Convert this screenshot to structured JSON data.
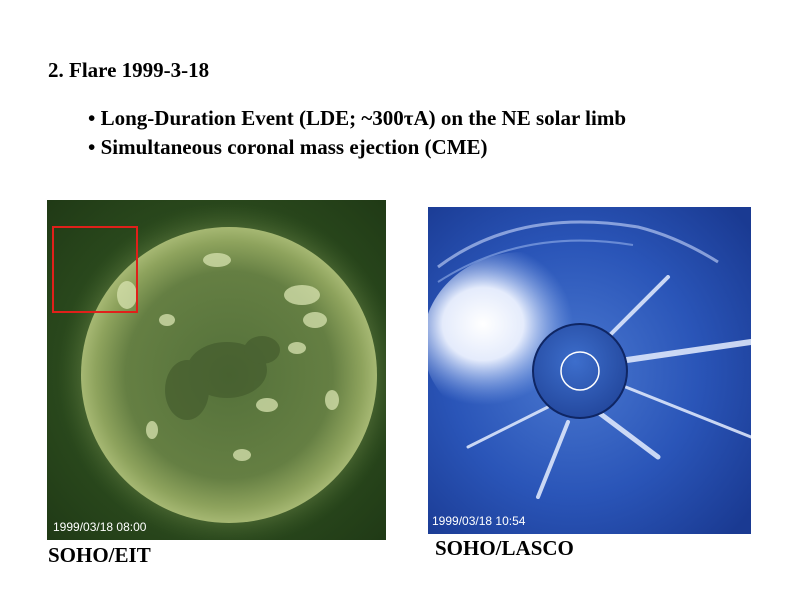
{
  "title": "2. Flare 1999-3-18",
  "bullets": [
    "• Long-Duration Event (LDE; ~300τA) on the NE solar limb",
    "• Simultaneous coronal mass ejection (CME)"
  ],
  "images": {
    "eit": {
      "timestamp": "1999/03/18 08:00",
      "caption": "SOHO/EIT",
      "highlight_color": "#e0201a"
    },
    "lasco": {
      "timestamp": "1999/03/18 10:54",
      "caption": "SOHO/LASCO"
    }
  }
}
